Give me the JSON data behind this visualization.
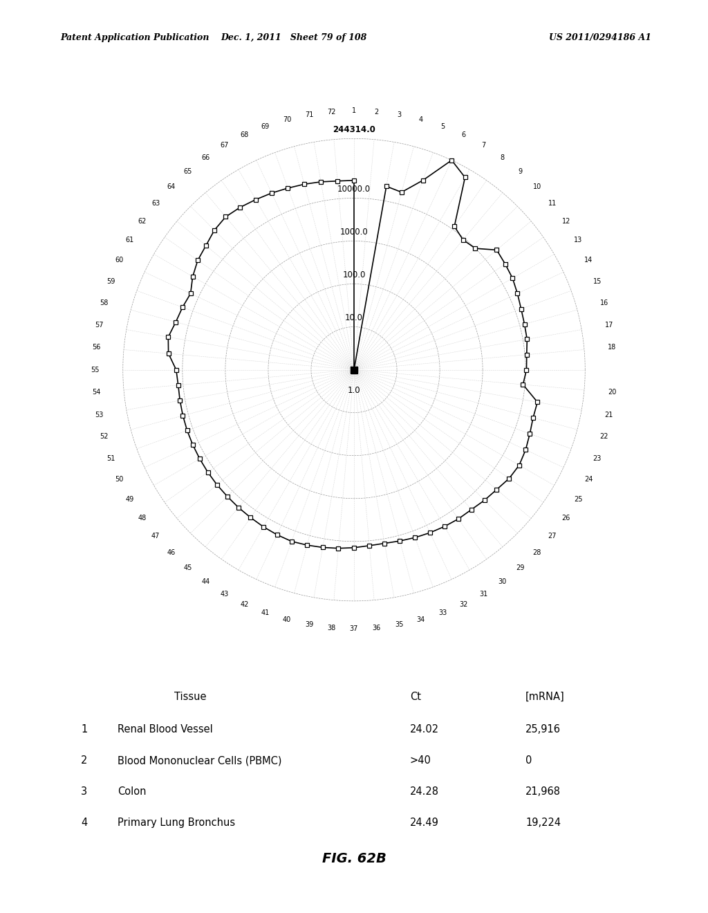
{
  "header_left": "Patent Application Publication",
  "header_mid": "Dec. 1, 2011   Sheet 79 of 108",
  "header_right": "US 2011/0294186 A1",
  "fig_label": "FIG. 62B",
  "n_spokes": 72,
  "r_levels": [
    1.0,
    10.0,
    100.0,
    1000.0,
    10000.0,
    244314.0
  ],
  "r_level_labels": [
    "1.0",
    "10.0",
    "100.0",
    "1000.0",
    "10000.0",
    "244314.0"
  ],
  "r_max": 244314.0,
  "spoke_labels_skip": [
    19
  ],
  "table_headers": [
    "Tissue",
    "Ct",
    "[mRNA]"
  ],
  "table_rows": [
    [
      "1",
      "Renal Blood Vessel",
      "24.02",
      "25,916"
    ],
    [
      "2",
      "Blood Mononuclear Cells (PBMC)",
      ">40",
      "0"
    ],
    [
      "3",
      "Colon",
      "24.28",
      "21,968"
    ],
    [
      "4",
      "Primary Lung Bronchus",
      "24.49",
      "19,224"
    ]
  ],
  "values": [
    25916,
    1,
    21968,
    19224,
    50000,
    244314,
    150000,
    12000,
    9000,
    10000,
    22000,
    20000,
    18500,
    16000,
    14000,
    13000,
    12500,
    11000,
    10500,
    9000,
    22000,
    21000,
    23000,
    26000,
    28000,
    26000,
    22000,
    20000,
    18000,
    17500,
    16500,
    15500,
    14500,
    13500,
    12800,
    13000,
    14000,
    15000,
    16000,
    17000,
    18000,
    17500,
    16800,
    16000,
    15500,
    15000,
    14800,
    14500,
    14200,
    14000,
    13800,
    13500,
    13200,
    13000,
    14000,
    22000,
    25000,
    20000,
    18000,
    16000,
    22000,
    28000,
    32000,
    40000,
    45000,
    42000,
    38000,
    35000,
    32000,
    30000,
    28000,
    26000
  ]
}
